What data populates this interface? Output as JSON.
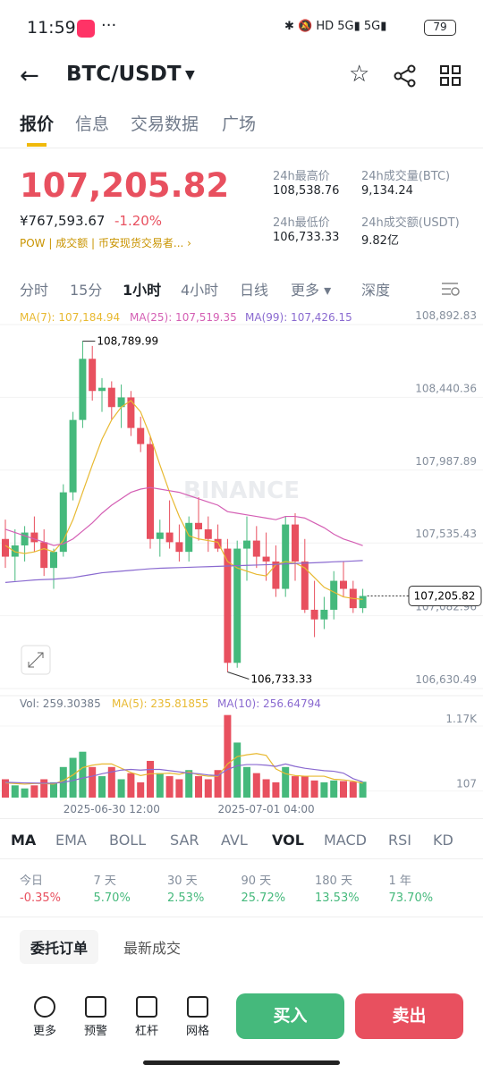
{
  "status": {
    "time": "11:59",
    "battery": "79"
  },
  "header": {
    "pair": "BTC/USDT"
  },
  "tabs": [
    "报价",
    "信息",
    "交易数据",
    "广场"
  ],
  "price": {
    "last": "107,205.82",
    "cny": "¥767,593.67",
    "change": "-1.20%",
    "tags": [
      "POW",
      "成交额",
      "币安现货交易者..."
    ]
  },
  "stats": [
    {
      "label": "24h最高价",
      "value": "108,538.76"
    },
    {
      "label": "24h成交量(BTC)",
      "value": "9,134.24"
    },
    {
      "label": "24h最低价",
      "value": "106,733.33"
    },
    {
      "label": "24h成交额(USDT)",
      "value": "9.82亿"
    }
  ],
  "intervals": [
    "分时",
    "15分",
    "1小时",
    "4小时",
    "日线",
    "更多",
    "深度"
  ],
  "chart_data": {
    "type": "candlestick",
    "watermark": "BINANCE",
    "up_color": "#45b97c",
    "down_color": "#e8505f",
    "categories": [
      null,
      null,
      null,
      null,
      null,
      null,
      null,
      null,
      null,
      null,
      null,
      "2025-06-30 12:00",
      null,
      null,
      null,
      null,
      null,
      null,
      null,
      null,
      null,
      null,
      null,
      null,
      null,
      null,
      null,
      "2025-07-01 04:00",
      null,
      null,
      null,
      null,
      null,
      null,
      null,
      null,
      null,
      null
    ],
    "open": [
      107560,
      107450,
      107520,
      107600,
      107540,
      107380,
      107480,
      107850,
      108300,
      108680,
      108480,
      108500,
      108380,
      108440,
      108250,
      108150,
      107560,
      107600,
      107540,
      107480,
      107660,
      107620,
      107560,
      107500,
      106790,
      107500,
      107550,
      107450,
      107420,
      107250,
      107650,
      107420,
      107120,
      107060,
      107120,
      107300,
      107250,
      107130
    ],
    "high": [
      107680,
      107620,
      107640,
      107700,
      107620,
      107500,
      107900,
      108350,
      108789.99,
      108760,
      108560,
      108540,
      108520,
      108480,
      108320,
      108200,
      107680,
      107800,
      107650,
      107700,
      107820,
      107700,
      107650,
      107560,
      107550,
      107700,
      107640,
      107600,
      107520,
      107700,
      107720,
      107560,
      107300,
      107200,
      107360,
      107420,
      107300,
      107250
    ],
    "low": [
      107380,
      107300,
      107420,
      107480,
      107330,
      107250,
      107450,
      107800,
      108250,
      108420,
      108350,
      108300,
      108250,
      108200,
      108100,
      107500,
      107450,
      107500,
      107420,
      107420,
      107550,
      107480,
      107480,
      106733.33,
      106760,
      107300,
      107380,
      107300,
      107200,
      107200,
      107300,
      107100,
      106950,
      107000,
      107060,
      107200,
      107100,
      107100
    ],
    "close": [
      107450,
      107520,
      107600,
      107540,
      107380,
      107480,
      107850,
      108300,
      108680,
      108480,
      108500,
      108380,
      108440,
      108250,
      108150,
      107560,
      107600,
      107540,
      107480,
      107660,
      107620,
      107560,
      107500,
      106790,
      107500,
      107550,
      107450,
      107420,
      107250,
      107650,
      107420,
      107120,
      107060,
      107120,
      107300,
      107250,
      107130,
      107205.82
    ],
    "series": [
      {
        "name": "MA(7): 107,184.94",
        "color": "#e8b931",
        "values": [
          107520,
          107480,
          107470,
          107480,
          107500,
          107480,
          107550,
          107680,
          107850,
          108020,
          108180,
          108300,
          108380,
          108420,
          108350,
          108200,
          108020,
          107850,
          107700,
          107580,
          107560,
          107550,
          107540,
          107420,
          107380,
          107360,
          107340,
          107330,
          107400,
          107420,
          107410,
          107380,
          107320,
          107260,
          107230,
          107200,
          107190,
          107185
        ]
      },
      {
        "name": "MA(25): 107,519.35",
        "color": "#d45fb4",
        "values": [
          107620,
          107600,
          107580,
          107560,
          107540,
          107520,
          107530,
          107560,
          107610,
          107660,
          107720,
          107770,
          107810,
          107850,
          107870,
          107880,
          107870,
          107860,
          107850,
          107830,
          107810,
          107790,
          107770,
          107730,
          107720,
          107710,
          107700,
          107690,
          107680,
          107700,
          107700,
          107690,
          107660,
          107630,
          107590,
          107560,
          107540,
          107519
        ]
      },
      {
        "name": "MA(99): 107,426.15",
        "color": "#8a6ad0",
        "values": [
          107290,
          107295,
          107300,
          107305,
          107308,
          107310,
          107315,
          107320,
          107330,
          107340,
          107350,
          107355,
          107360,
          107365,
          107370,
          107375,
          107378,
          107380,
          107382,
          107384,
          107386,
          107388,
          107390,
          107392,
          107394,
          107396,
          107398,
          107400,
          107402,
          107405,
          107408,
          107410,
          107412,
          107415,
          107418,
          107420,
          107423,
          107426
        ]
      }
    ],
    "ylim": [
      106586,
      108965
    ],
    "yticks": [
      {
        "value": 108892.83,
        "label": "108,892.83"
      },
      {
        "value": 108440.36,
        "label": "108,440.36"
      },
      {
        "value": 107987.89,
        "label": "107,987.89"
      },
      {
        "value": 107535.43,
        "label": "107,535.43"
      },
      {
        "value": 107082.96,
        "label": "107,082.96"
      },
      {
        "value": 106630.49,
        "label": "106,630.49"
      }
    ],
    "annotations": {
      "high": "108,789.99",
      "low": "106,733.33",
      "last": "107,205.82"
    },
    "volume": {
      "title": "Vol: 259.30385",
      "ylim": [
        0,
        1345
      ],
      "yticks": [
        {
          "value": 1170,
          "label": "1.17K"
        },
        107
      ],
      "values": [
        300,
        200,
        150,
        200,
        300,
        250,
        500,
        650,
        750,
        500,
        350,
        500,
        300,
        400,
        250,
        600,
        400,
        350,
        300,
        450,
        350,
        300,
        450,
        1350,
        900,
        500,
        400,
        300,
        250,
        500,
        350,
        350,
        280,
        250,
        280,
        270,
        260,
        259.30385
      ],
      "series": [
        {
          "name": "MA(5): 235.81855",
          "color": "#e8b931",
          "values": [
            240,
            230,
            220,
            230,
            230,
            220,
            280,
            370,
            490,
            530,
            550,
            550,
            480,
            410,
            360,
            390,
            390,
            400,
            380,
            420,
            370,
            350,
            350,
            550,
            670,
            700,
            720,
            690,
            470,
            390,
            360,
            350,
            350,
            350,
            300,
            290,
            270,
            236
          ]
        },
        {
          "name": "MA(10): 256.64794",
          "color": "#8a6ad0",
          "values": [
            250,
            245,
            240,
            238,
            236,
            235,
            250,
            280,
            320,
            350,
            390,
            420,
            450,
            460,
            450,
            460,
            460,
            440,
            420,
            400,
            390,
            370,
            360,
            460,
            520,
            540,
            540,
            530,
            510,
            550,
            510,
            480,
            460,
            440,
            430,
            400,
            310,
            257
          ]
        }
      ]
    }
  },
  "indicators": [
    "MA",
    "EMA",
    "BOLL",
    "SAR",
    "AVL",
    "VOL",
    "MACD",
    "RSI",
    "KD"
  ],
  "performance": [
    {
      "label": "今日",
      "value": "-0.35%"
    },
    {
      "label": "7 天",
      "value": "5.70%"
    },
    {
      "label": "30 天",
      "value": "2.53%"
    },
    {
      "label": "90 天",
      "value": "25.72%"
    },
    {
      "label": "180 天",
      "value": "13.53%"
    },
    {
      "label": "1 年",
      "value": "73.70%"
    }
  ],
  "orders": [
    "委托订单",
    "最新成交"
  ],
  "bottom": [
    "更多",
    "预警",
    "杠杆",
    "网格"
  ],
  "buy": "买入",
  "sell": "卖出"
}
